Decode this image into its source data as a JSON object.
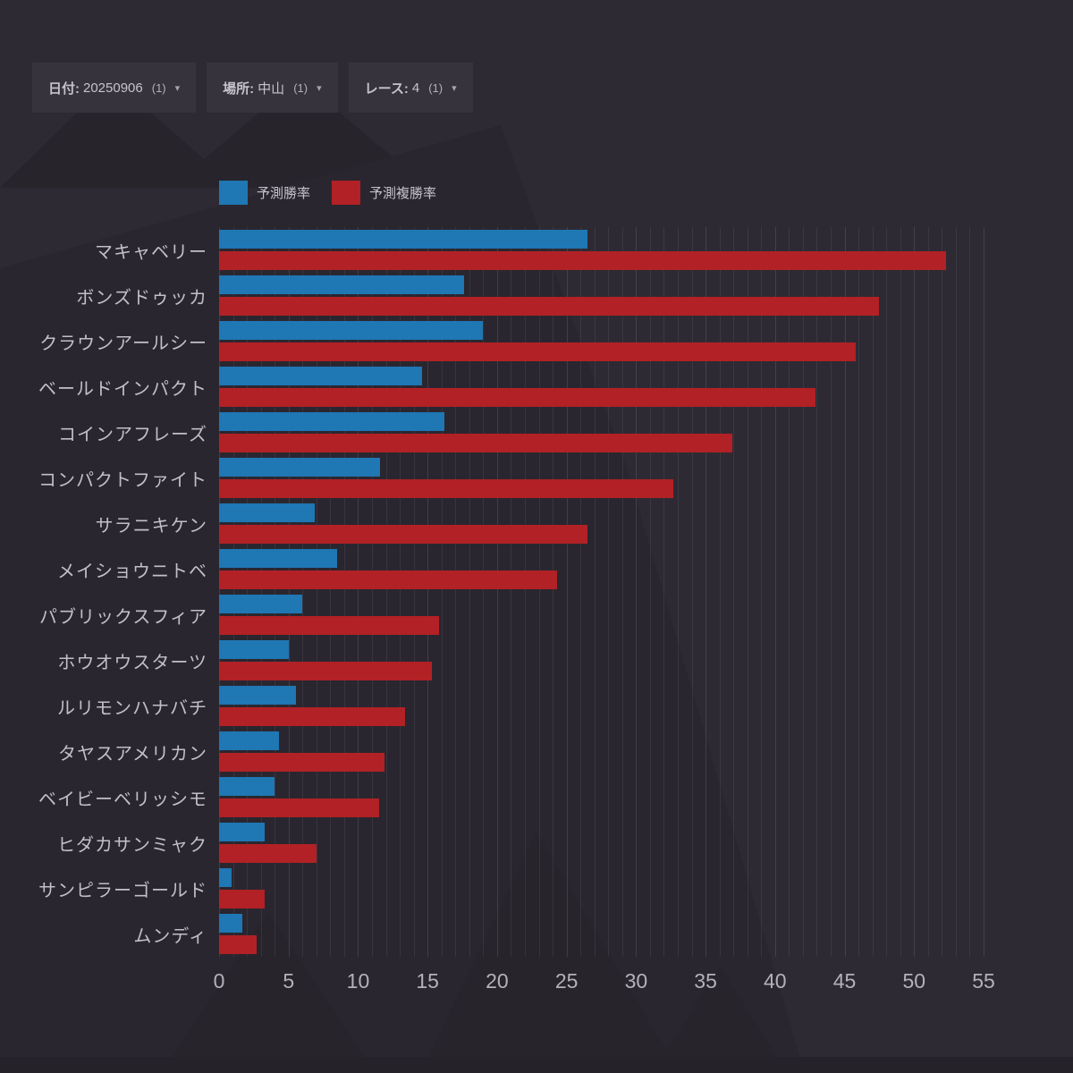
{
  "filters": [
    {
      "label": "日付:",
      "value": "20250906",
      "count": "(1)",
      "caret": "▾"
    },
    {
      "label": "場所:",
      "value": "中山",
      "count": "(1)",
      "caret": "▾"
    },
    {
      "label": "レース:",
      "value": "4",
      "count": "(1)",
      "caret": "▾"
    }
  ],
  "chart_data": {
    "type": "bar",
    "orientation": "horizontal",
    "title": "",
    "xlabel": "",
    "ylabel": "",
    "xlim": [
      0,
      55
    ],
    "xticks": [
      0,
      5,
      10,
      15,
      20,
      25,
      30,
      35,
      40,
      45,
      50,
      55
    ],
    "grid": "minor vertical lines every 1 unit",
    "legend_position": "top-left",
    "colors": {
      "win": "#1f77b4",
      "place": "#b22125"
    },
    "categories": [
      "マキャベリー",
      "ボンズドゥッカ",
      "クラウンアールシー",
      "ベールドインパクト",
      "コインアフレーズ",
      "コンパクトファイト",
      "サラニキケン",
      "メイショウニトベ",
      "パブリックスフィア",
      "ホウオウスターツ",
      "ルリモンハナバチ",
      "タヤスアメリカン",
      "ベイビーベリッシモ",
      "ヒダカサンミャク",
      "サンピラーゴールド",
      "ムンディ"
    ],
    "series": [
      {
        "name": "予測勝率",
        "color_key": "win",
        "values": [
          26.5,
          17.6,
          19.0,
          14.6,
          16.2,
          11.6,
          6.9,
          8.5,
          6.0,
          5.0,
          5.5,
          4.3,
          4.0,
          3.3,
          0.9,
          1.7
        ]
      },
      {
        "name": "予測複勝率",
        "color_key": "place",
        "values": [
          52.3,
          47.5,
          45.8,
          42.9,
          36.9,
          32.7,
          26.5,
          24.3,
          15.8,
          15.3,
          13.4,
          11.9,
          11.5,
          7.0,
          3.3,
          2.7
        ]
      }
    ]
  }
}
